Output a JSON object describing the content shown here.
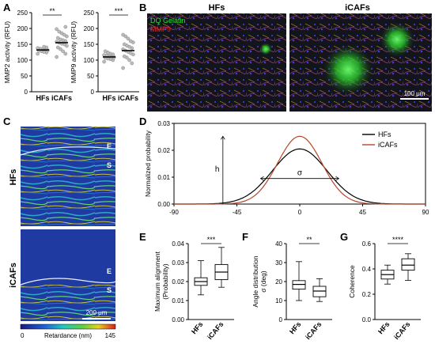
{
  "panel_letters": {
    "A": "A",
    "B": "B",
    "C": "C",
    "D": "D",
    "E": "E",
    "F": "F",
    "G": "G"
  },
  "colors": {
    "hfs": "#000000",
    "icafs": "#b5482b",
    "gelatin": "#28e028",
    "mmp9": "#e02828"
  },
  "panel_a": {
    "charts": [
      {
        "ylabel": "MMP2 activity (RFU)",
        "yticks": [
          "0",
          "50",
          "100",
          "150",
          "200",
          "250"
        ],
        "ylim": [
          0,
          250
        ],
        "categories": [
          "HFs",
          "iCAFs"
        ],
        "significance": "**",
        "groups": [
          {
            "name": "HFs",
            "mean": 132,
            "points": [
              120,
              124,
              126,
              128,
              130,
              131,
              133,
              134,
              136,
              138,
              140,
              142
            ]
          },
          {
            "name": "iCAFs",
            "mean": 155,
            "points": [
              110,
              120,
              128,
              135,
              140,
              145,
              150,
              152,
              155,
              158,
              160,
              163,
              165,
              170,
              175,
              180,
              185,
              190,
              198,
              205
            ]
          }
        ]
      },
      {
        "ylabel": "MMP9 activity (RFU)",
        "yticks": [
          "0",
          "50",
          "100",
          "150",
          "200",
          "250"
        ],
        "ylim": [
          0,
          250
        ],
        "categories": [
          "HFs",
          "iCAFs"
        ],
        "significance": "***",
        "groups": [
          {
            "name": "HFs",
            "mean": 110,
            "points": [
              95,
              100,
              103,
              105,
              107,
              109,
              110,
              112,
              114,
              116,
              118,
              120,
              124,
              128
            ]
          },
          {
            "name": "iCAFs",
            "mean": 130,
            "points": [
              75,
              90,
              100,
              108,
              112,
              118,
              122,
              126,
              130,
              134,
              138,
              142,
              146,
              150,
              156,
              160,
              168,
              175,
              180
            ]
          }
        ]
      }
    ]
  },
  "panel_b": {
    "title_left": "HFs",
    "title_right": "iCAFs",
    "label_gelatin": "DQ Gelatin",
    "label_mmp9": "MMP9",
    "scale": "100 μm"
  },
  "panel_c": {
    "row_top": "HFs",
    "row_bottom": "iCAFs",
    "layer_e": "E",
    "layer_s": "S",
    "scale": "200 μm",
    "colorbar_min": "0",
    "colorbar_label": "Retardance (nm)",
    "colorbar_max": "145"
  },
  "panel_d": {
    "chart_data": {
      "type": "line",
      "ylabel": "Normalized probability",
      "xlim": [
        -90,
        90
      ],
      "ylim": [
        0,
        0.03
      ],
      "xticks": [
        "-90",
        "-45",
        "0",
        "45",
        "90"
      ],
      "yticks": [
        "0.00",
        "0.01",
        "0.02",
        "0.03"
      ],
      "series": [
        {
          "name": "HFs",
          "peak": 0.0205,
          "sigma": 19.5
        },
        {
          "name": "iCAFs",
          "peak": 0.0252,
          "sigma": 15.8
        }
      ],
      "annotation_h": "h",
      "annotation_sigma": "σ"
    }
  },
  "panel_e": {
    "ylabel_line1": "Maximum alignment",
    "ylabel_line2": "(Probability)",
    "yticks": [
      "0.00",
      "0.01",
      "0.02",
      "0.03",
      "0.04"
    ],
    "ylim": [
      0,
      0.04
    ],
    "significance": "***",
    "boxes": [
      {
        "name": "HFs",
        "min": 0.013,
        "q1": 0.018,
        "median": 0.02,
        "q3": 0.022,
        "max": 0.031
      },
      {
        "name": "iCAFs",
        "min": 0.017,
        "q1": 0.021,
        "median": 0.025,
        "q3": 0.029,
        "max": 0.038
      }
    ]
  },
  "panel_f": {
    "ylabel_line1": "Angle distribution",
    "ylabel_line2": "σ (deg)",
    "yticks": [
      "0",
      "10",
      "20",
      "30",
      "40"
    ],
    "ylim": [
      0,
      40
    ],
    "significance": "**",
    "boxes": [
      {
        "name": "HFs",
        "min": 10,
        "q1": 16,
        "median": 18.5,
        "q3": 20.5,
        "max": 30.5
      },
      {
        "name": "iCAFs",
        "min": 9.5,
        "q1": 12,
        "median": 15,
        "q3": 17.5,
        "max": 21.5
      }
    ]
  },
  "panel_g": {
    "ylabel": "Coherence",
    "yticks": [
      "0.0",
      "0.2",
      "0.4",
      "0.6"
    ],
    "ylim": [
      0,
      0.6
    ],
    "significance": "****",
    "boxes": [
      {
        "name": "HFs",
        "min": 0.28,
        "q1": 0.32,
        "median": 0.355,
        "q3": 0.39,
        "max": 0.43
      },
      {
        "name": "iCAFs",
        "min": 0.31,
        "q1": 0.39,
        "median": 0.43,
        "q3": 0.48,
        "max": 0.52
      }
    ]
  }
}
